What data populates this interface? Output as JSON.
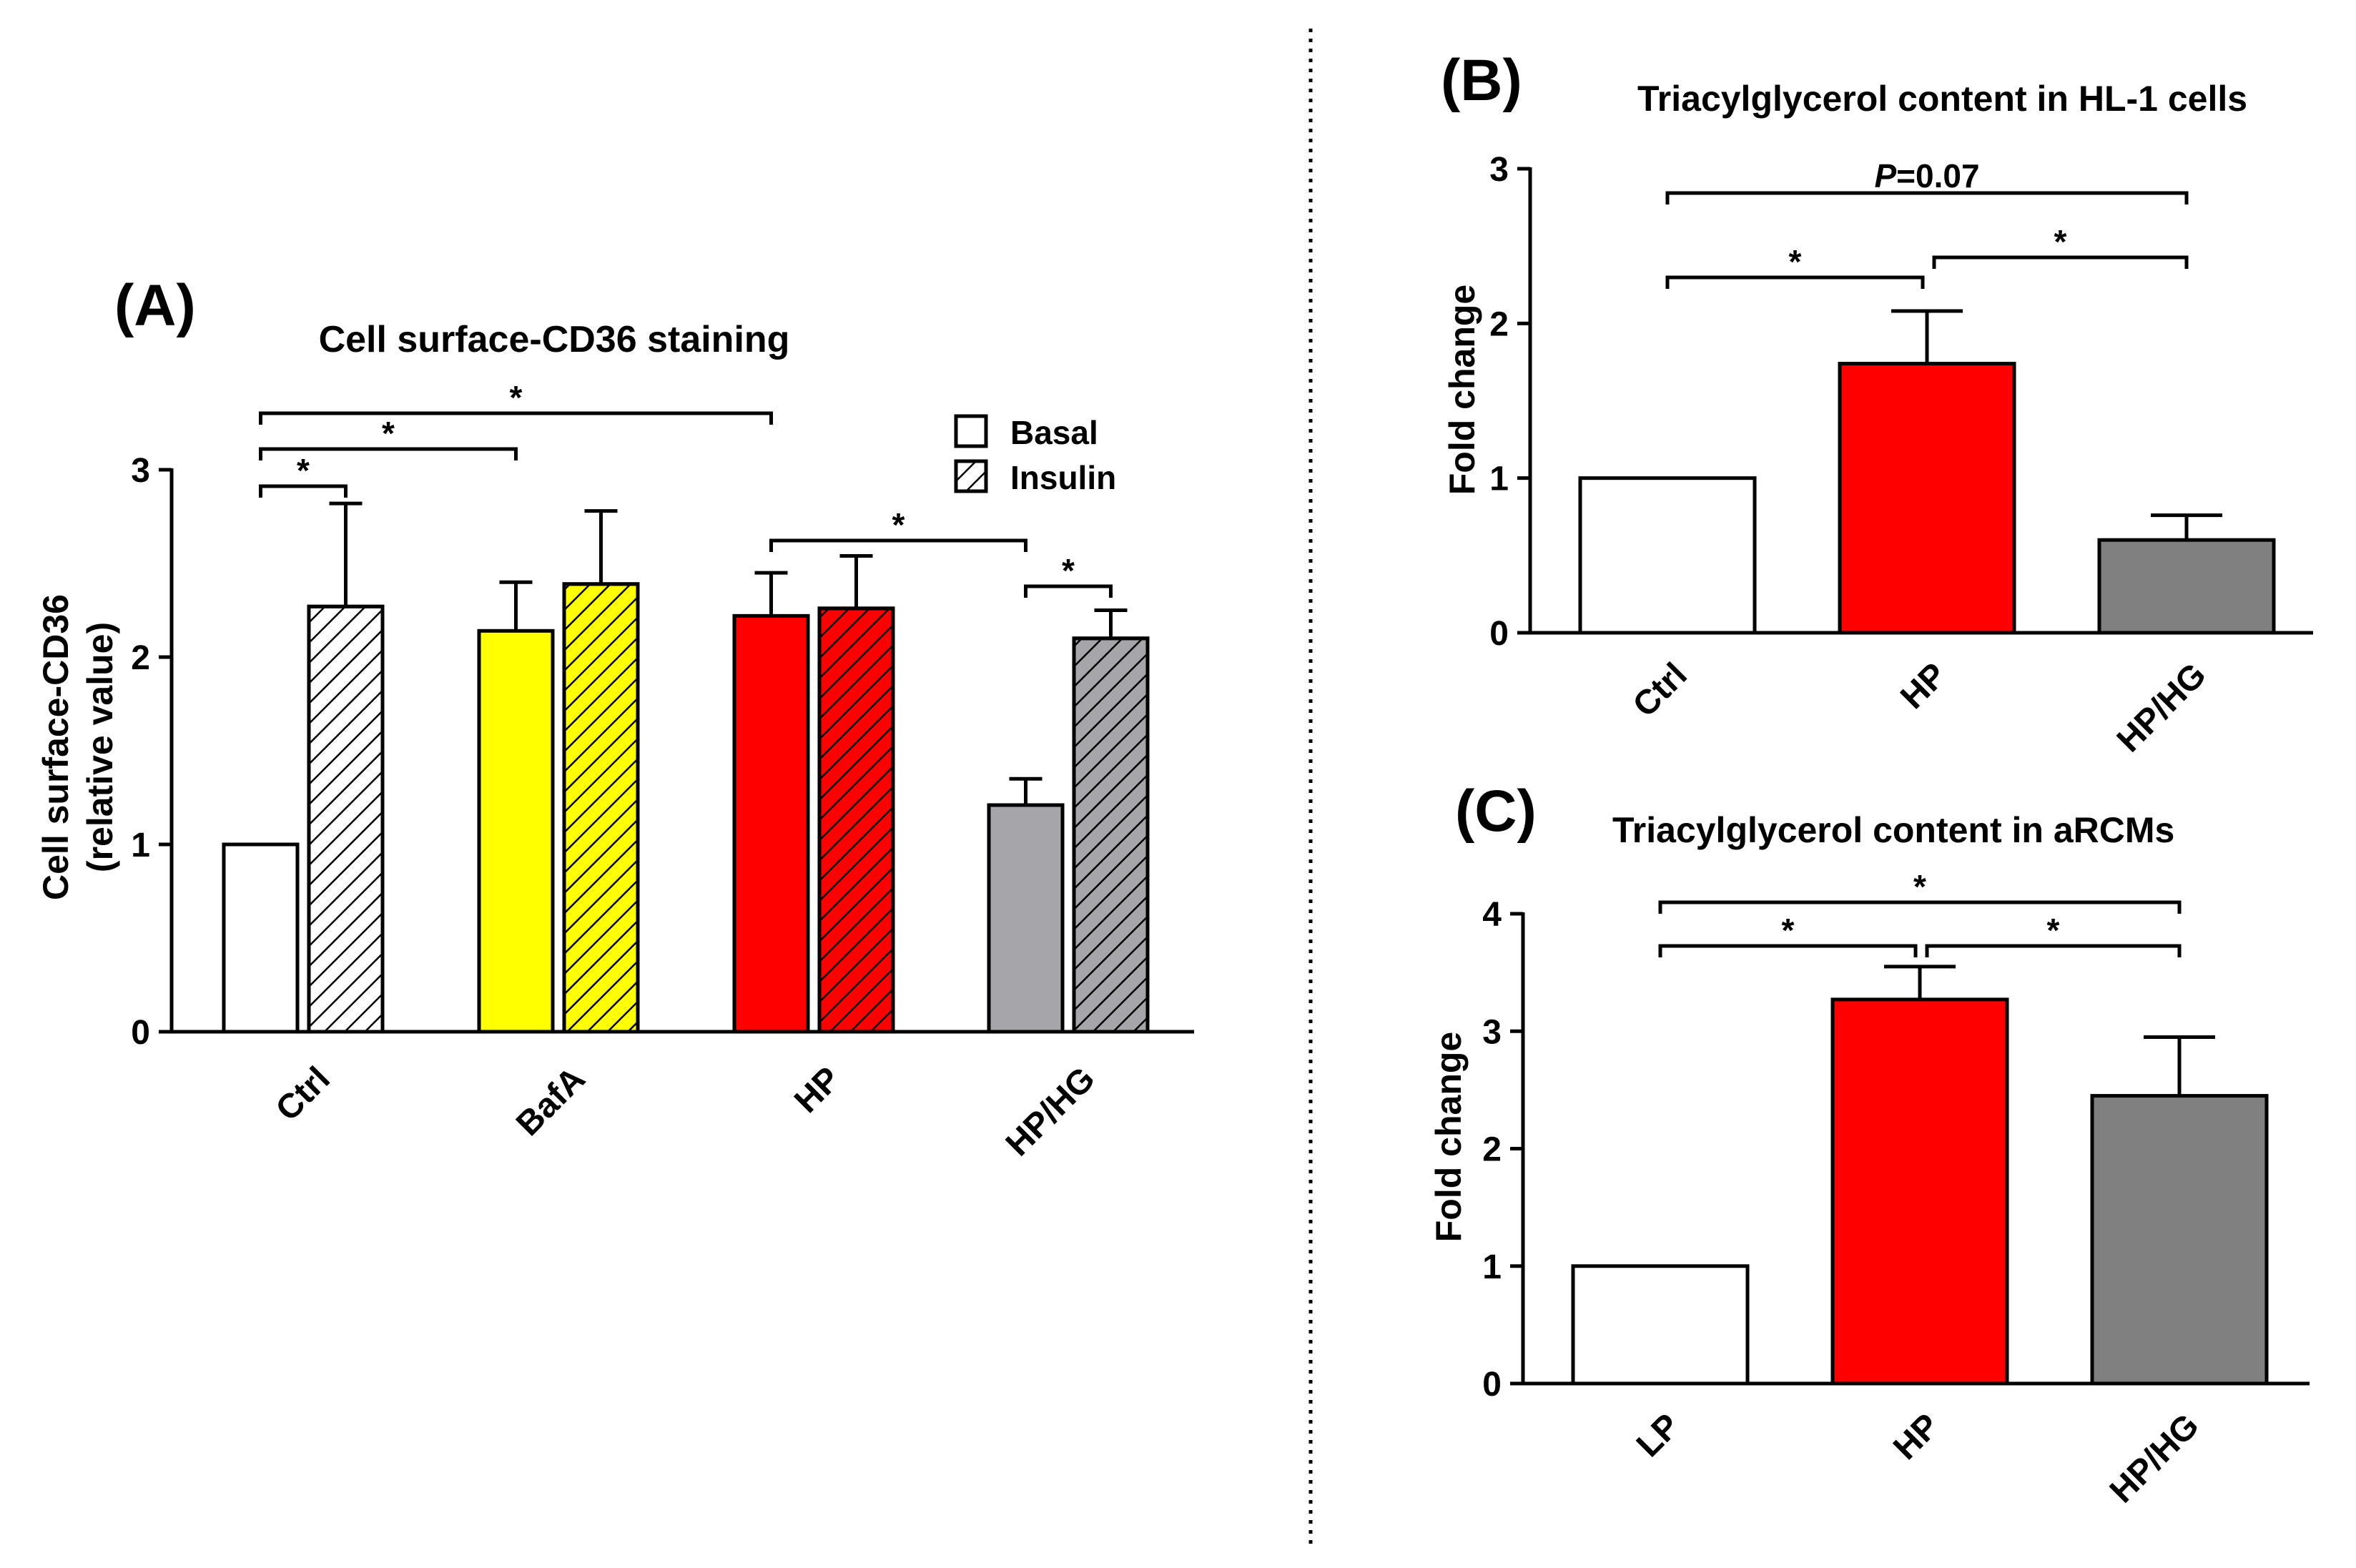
{
  "chart_data": [
    {
      "panel": "(A)",
      "type": "bar",
      "title": "Cell surface-CD36 staining",
      "ylabel_line1": "Cell surface-CD36",
      "ylabel_line2": "(relative value)",
      "ylim": [
        0,
        3
      ],
      "yticks": [
        0,
        1,
        2,
        3
      ],
      "categories": [
        "Ctrl",
        "BafA",
        "HP",
        "HP/HG"
      ],
      "category_colors": [
        "#ffffff",
        "#ffff00",
        "#ff0000",
        "#a6a6aa"
      ],
      "legend": [
        "Basal",
        "Insulin"
      ],
      "series": [
        {
          "name": "Basal",
          "pattern": "solid",
          "values": [
            1.0,
            2.14,
            2.22,
            1.21
          ],
          "errors": [
            0,
            0.26,
            0.23,
            0.14
          ]
        },
        {
          "name": "Insulin",
          "pattern": "hatched",
          "values": [
            2.27,
            2.39,
            2.26,
            2.1
          ],
          "errors": [
            0.55,
            0.39,
            0.28,
            0.15
          ]
        }
      ],
      "significance": [
        {
          "from": [
            0,
            0
          ],
          "to": [
            0,
            1
          ],
          "label": "*"
        },
        {
          "from": [
            0,
            0
          ],
          "to": [
            1,
            0
          ],
          "label": "*"
        },
        {
          "from": [
            0,
            0
          ],
          "to": [
            2,
            0
          ],
          "label": "*"
        },
        {
          "from": [
            2,
            0
          ],
          "to": [
            3,
            0
          ],
          "label": "*"
        },
        {
          "from": [
            3,
            0
          ],
          "to": [
            3,
            1
          ],
          "label": "*"
        }
      ]
    },
    {
      "panel": "(B)",
      "type": "bar",
      "title": "Triacylglycerol content in HL-1 cells",
      "ylabel": "Fold change",
      "ylim": [
        0,
        3
      ],
      "yticks": [
        0,
        1,
        2,
        3
      ],
      "categories": [
        "Ctrl",
        "HP",
        "HP/HG"
      ],
      "colors": [
        "#ffffff",
        "#ff0000",
        "#808080"
      ],
      "values": [
        1.0,
        1.74,
        0.6
      ],
      "errors": [
        0,
        0.34,
        0.16
      ],
      "significance": [
        {
          "from": 0,
          "to": 2,
          "label_prefix": "P",
          "label_value": "=0.07"
        },
        {
          "from": 0,
          "to": 1,
          "label": "*"
        },
        {
          "from": 1,
          "to": 2,
          "label": "*"
        }
      ]
    },
    {
      "panel": "(C)",
      "type": "bar",
      "title": "Triacylglycerol content in aRCMs",
      "ylabel": "Fold change",
      "ylim": [
        0,
        4
      ],
      "yticks": [
        0,
        1,
        2,
        3,
        4
      ],
      "categories": [
        "LP",
        "HP",
        "HP/HG"
      ],
      "colors": [
        "#ffffff",
        "#ff0000",
        "#808080"
      ],
      "values": [
        1.0,
        3.27,
        2.45
      ],
      "errors": [
        0,
        0.28,
        0.5
      ],
      "significance": [
        {
          "from": 0,
          "to": 2,
          "label": "*"
        },
        {
          "from": 0,
          "to": 1,
          "label": "*"
        },
        {
          "from": 1,
          "to": 2,
          "label": "*"
        }
      ]
    }
  ]
}
